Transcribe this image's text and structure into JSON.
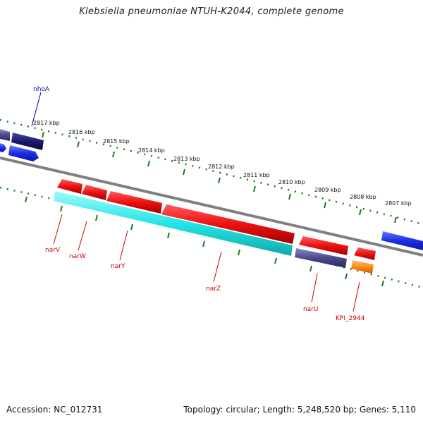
{
  "title": "Klebsiella pneumoniae NTUH-K2044, complete genome",
  "footer": {
    "accession": "Accession: NC_012731",
    "summary": "Topology: circular; Length: 5,248,520 bp; Genes: 5,110"
  },
  "ticks": [
    "2817 kbp",
    "2816 kbp",
    "2815 kbp",
    "2814 kbp",
    "2813 kbp",
    "2812 kbp",
    "2811 kbp",
    "2810 kbp",
    "2809 kbp",
    "2808 kbp",
    "2807 kbp"
  ],
  "genes": [
    {
      "name": "nhoA",
      "color": "#0000aa"
    },
    {
      "name": "narV",
      "color": "#cc0000"
    },
    {
      "name": "narW",
      "color": "#cc0000"
    },
    {
      "name": "narY",
      "color": "#cc0000"
    },
    {
      "name": "narZ",
      "color": "#cc0000"
    },
    {
      "name": "narU",
      "color": "#cc0000"
    },
    {
      "name": "KPI_2944",
      "color": "#cc0000"
    }
  ],
  "colors": {
    "cds_red": "#ee1111",
    "cds_navy": "#1a1a6e",
    "cds_blue": "#1a2ee8",
    "cds_slate": "#4a4a8c",
    "cds_cyan": "#22e6e6",
    "cds_orange": "#ff8c1a",
    "backbone": "#808080",
    "tick_green": "#1a7a1a"
  }
}
